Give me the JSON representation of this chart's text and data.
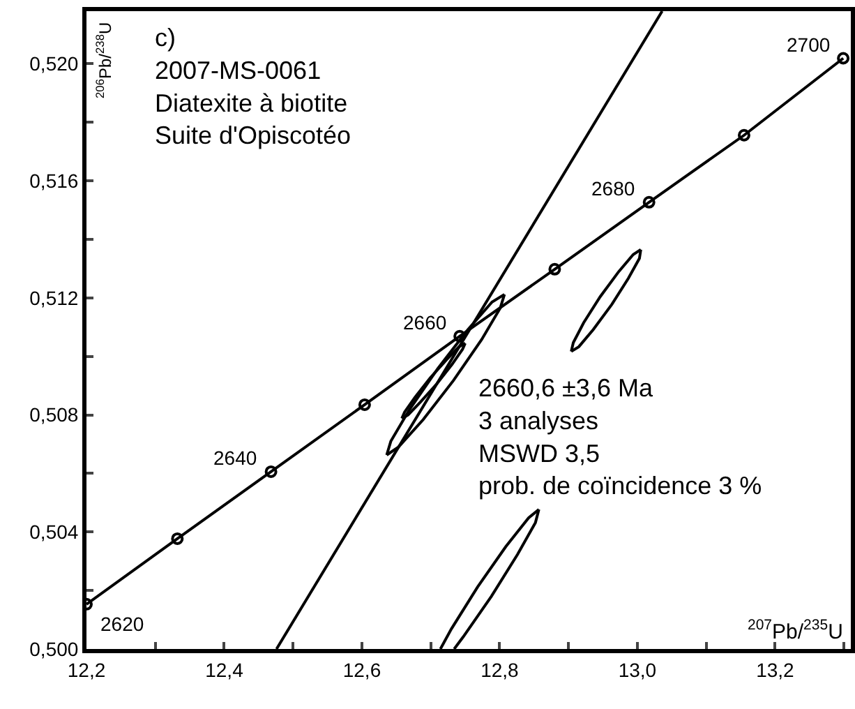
{
  "chart_data": {
    "type": "line",
    "xlabel": "$^{207}$Pb/$^{235}$U",
    "ylabel": "$^{206}$Pb/$^{238}$U",
    "xlim": [
      12.2,
      13.31
    ],
    "ylim": [
      0.5,
      0.5218
    ],
    "xticks": [
      {
        "value": 12.2,
        "label": "12,2"
      },
      {
        "value": 12.3,
        "label": null
      },
      {
        "value": 12.4,
        "label": "12,4"
      },
      {
        "value": 12.5,
        "label": null
      },
      {
        "value": 12.6,
        "label": "12,6"
      },
      {
        "value": 12.7,
        "label": null
      },
      {
        "value": 12.8,
        "label": "12,8"
      },
      {
        "value": 12.9,
        "label": null
      },
      {
        "value": 13.0,
        "label": "13,0"
      },
      {
        "value": 13.1,
        "label": null
      },
      {
        "value": 13.2,
        "label": "13,2"
      },
      {
        "value": 13.3,
        "label": null
      }
    ],
    "yticks": [
      {
        "value": 0.5,
        "label": "0,500"
      },
      {
        "value": 0.502,
        "label": null
      },
      {
        "value": 0.504,
        "label": "0,504"
      },
      {
        "value": 0.506,
        "label": null
      },
      {
        "value": 0.508,
        "label": "0,508"
      },
      {
        "value": 0.51,
        "label": null
      },
      {
        "value": 0.512,
        "label": "0,512"
      },
      {
        "value": 0.514,
        "label": null
      },
      {
        "value": 0.516,
        "label": "0,516"
      },
      {
        "value": 0.518,
        "label": null
      },
      {
        "value": 0.52,
        "label": "0,520"
      }
    ],
    "grid": false,
    "series": [
      {
        "color": "#000000",
        "marker": "circle",
        "x": [
          12.2,
          12.332,
          12.468,
          12.604,
          12.742,
          12.88,
          13.017,
          13.155,
          13.299
        ],
        "values": [
          0.50153,
          0.50377,
          0.50606,
          0.50835,
          0.51069,
          0.51298,
          0.51527,
          0.51756,
          0.52019
        ]
      },
      {
        "color": "#000000",
        "marker": "none",
        "x": [
          12.476,
          13.036
        ],
        "values": [
          0.5,
          0.5218
        ]
      },
      {
        "color": "#000000",
        "marker": "none",
        "x": [
          12.904,
          12.915,
          12.936,
          12.963,
          12.987,
          13.003,
          13.005
        ],
        "values": [
          0.51017,
          0.51033,
          0.51092,
          0.51178,
          0.51267,
          0.51335,
          0.51365
        ]
      },
      {
        "color": "#000000",
        "marker": "none",
        "x": [
          12.904,
          12.907,
          12.922,
          12.946,
          12.973,
          12.994,
          13.005
        ],
        "values": [
          0.51017,
          0.51047,
          0.51115,
          0.51204,
          0.5129,
          0.51348,
          0.51365
        ]
      },
      {
        "color": "#000000",
        "marker": "none",
        "x": [
          12.636,
          12.653,
          12.689,
          12.733,
          12.774,
          12.801,
          12.807
        ],
        "values": [
          0.50663,
          0.5069,
          0.50784,
          0.50918,
          0.51058,
          0.51166,
          0.51212
        ]
      },
      {
        "color": "#000000",
        "marker": "none",
        "x": [
          12.636,
          12.642,
          12.669,
          12.71,
          12.754,
          12.789,
          12.807
        ],
        "values": [
          0.50663,
          0.5071,
          0.50818,
          0.50958,
          0.51092,
          0.51186,
          0.51212
        ]
      },
      {
        "color": "#000000",
        "marker": "none",
        "x": [
          12.658,
          12.667,
          12.685,
          12.709,
          12.731,
          12.746,
          12.75
        ],
        "values": [
          0.50788,
          0.508,
          0.50844,
          0.50907,
          0.50973,
          0.51024,
          0.51045
        ]
      },
      {
        "color": "#000000",
        "marker": "none",
        "x": [
          12.658,
          12.662,
          12.677,
          12.699,
          12.723,
          12.741,
          12.75
        ],
        "values": [
          0.50788,
          0.5081,
          0.5086,
          0.50926,
          0.50989,
          0.51033,
          0.51045
        ]
      },
      {
        "color": "#000000",
        "marker": "none",
        "x": [
          12.714,
          12.73,
          12.768,
          12.809,
          12.842,
          12.857
        ],
        "values": [
          0.5,
          0.50069,
          0.50212,
          0.5035,
          0.50448,
          0.50477
        ]
      },
      {
        "color": "#000000",
        "marker": "none",
        "x": [
          12.734,
          12.747,
          12.788,
          12.826,
          12.852,
          12.857
        ],
        "values": [
          0.5,
          0.50041,
          0.5018,
          0.50323,
          0.50432,
          0.50477
        ]
      }
    ],
    "annotations": [
      {
        "text": "2620",
        "x": 12.2,
        "y": 0.50153
      },
      {
        "text": "2640",
        "x": 12.468,
        "y": 0.50606
      },
      {
        "text": "2660",
        "x": 12.742,
        "y": 0.51069
      },
      {
        "text": "2680",
        "x": 13.017,
        "y": 0.51527
      },
      {
        "text": "2700",
        "x": 13.299,
        "y": 0.52019
      },
      "c)\n2007-MS-0061\nDiatexite à biotite\nSuite d'Opiscotéo",
      "2660,6 ±3,6 Ma\n3 analyses\nMSWD 3,5\nprob. de coïncidence 3 %"
    ]
  }
}
